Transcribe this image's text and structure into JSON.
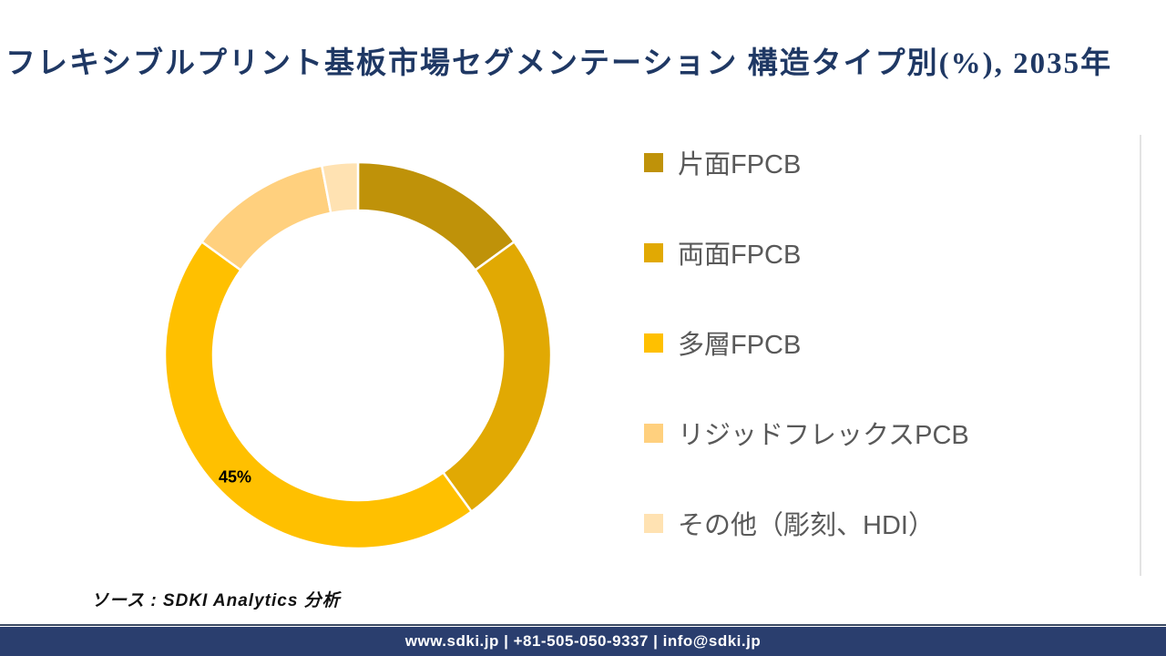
{
  "page": {
    "title": "フレキシブルプリント基板市場セグメンテーション 構造タイプ別(%), 2035年",
    "title_color": "#1F3864"
  },
  "chart_data": {
    "type": "pie",
    "subtype": "donut",
    "title": "フレキシブルプリント基板市場セグメンテーション 構造タイプ別(%), 2035年",
    "categories": [
      "片面FPCB",
      "両面FPCB",
      "多層FPCB",
      "リジッドフレックスPCB",
      "その他（彫刻、HDI）"
    ],
    "values": [
      15,
      25,
      45,
      12,
      3
    ],
    "unit": "%",
    "colors": [
      "#BF9209",
      "#E1A903",
      "#FFC000",
      "#FFD07E",
      "#FFE2B2"
    ],
    "start_angle_deg": 0,
    "direction": "clockwise",
    "donut_hole_ratio": 0.75,
    "slice_gap_color": "#FFFFFF",
    "data_labels": [
      {
        "category": "多層FPCB",
        "text": "45%",
        "color": "#000000"
      }
    ],
    "legend_position": "right",
    "legend_text_color": "#595959"
  },
  "source": {
    "text": "ソース : SDKI Analytics 分析"
  },
  "footer": {
    "text": "www.sdki.jp | +81-505-050-9337 | info@sdki.jp",
    "bg_color": "#2A3E6E",
    "text_color": "#FFFFFF"
  }
}
